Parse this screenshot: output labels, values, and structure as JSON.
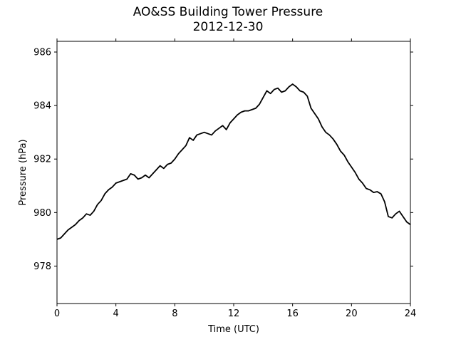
{
  "chart_data": {
    "type": "line",
    "title": "AO&SS Building Tower Pressure",
    "subtitle": "2012-12-30",
    "xlabel": "Time (UTC)",
    "ylabel": "Pressure (hPa)",
    "xlim": [
      0,
      24
    ],
    "ylim": [
      976.6,
      986.4
    ],
    "xticks": [
      0,
      4,
      8,
      12,
      16,
      20,
      24
    ],
    "yticks": [
      978,
      980,
      982,
      984,
      986
    ],
    "grid": false,
    "line_color": "#000000",
    "series": [
      {
        "x": [
          0,
          0.25,
          0.5,
          0.75,
          1,
          1.25,
          1.5,
          1.75,
          2,
          2.25,
          2.5,
          2.75,
          3,
          3.25,
          3.5,
          3.75,
          4,
          4.25,
          4.5,
          4.75,
          5,
          5.25,
          5.5,
          5.75,
          6,
          6.25,
          6.5,
          6.75,
          7,
          7.25,
          7.5,
          7.75,
          8,
          8.25,
          8.5,
          8.75,
          9,
          9.25,
          9.5,
          9.75,
          10,
          10.25,
          10.5,
          10.75,
          11,
          11.25,
          11.5,
          11.75,
          12,
          12.25,
          12.5,
          12.75,
          13,
          13.25,
          13.5,
          13.75,
          14,
          14.25,
          14.5,
          14.75,
          15,
          15.25,
          15.5,
          15.75,
          16,
          16.25,
          16.5,
          16.75,
          17,
          17.25,
          17.5,
          17.75,
          18,
          18.25,
          18.5,
          18.75,
          19,
          19.25,
          19.5,
          19.75,
          20,
          20.25,
          20.5,
          20.75,
          21,
          21.25,
          21.5,
          21.75,
          22,
          22.25,
          22.5,
          22.75,
          23,
          23.25,
          23.5,
          23.75,
          24
        ],
        "y": [
          979.0,
          979.05,
          979.2,
          979.35,
          979.45,
          979.55,
          979.7,
          979.8,
          979.95,
          979.9,
          980.05,
          980.3,
          980.45,
          980.7,
          980.85,
          980.95,
          981.1,
          981.15,
          981.2,
          981.25,
          981.45,
          981.4,
          981.25,
          981.3,
          981.4,
          981.3,
          981.45,
          981.6,
          981.75,
          981.65,
          981.8,
          981.85,
          982.0,
          982.2,
          982.35,
          982.5,
          982.8,
          982.7,
          982.9,
          982.95,
          983.0,
          982.95,
          982.9,
          983.05,
          983.15,
          983.25,
          983.1,
          983.35,
          983.5,
          983.65,
          983.75,
          983.8,
          983.8,
          983.85,
          983.9,
          984.05,
          984.3,
          984.55,
          984.45,
          984.6,
          984.65,
          984.5,
          984.55,
          984.7,
          984.8,
          984.7,
          984.55,
          984.5,
          984.35,
          983.9,
          983.7,
          983.5,
          983.2,
          983.0,
          982.9,
          982.75,
          982.55,
          982.3,
          982.15,
          981.9,
          981.7,
          981.5,
          981.25,
          981.1,
          980.9,
          980.85,
          980.75,
          980.78,
          980.7,
          980.4,
          979.85,
          979.8,
          979.95,
          980.05,
          979.85,
          979.65,
          979.55
        ]
      }
    ]
  }
}
